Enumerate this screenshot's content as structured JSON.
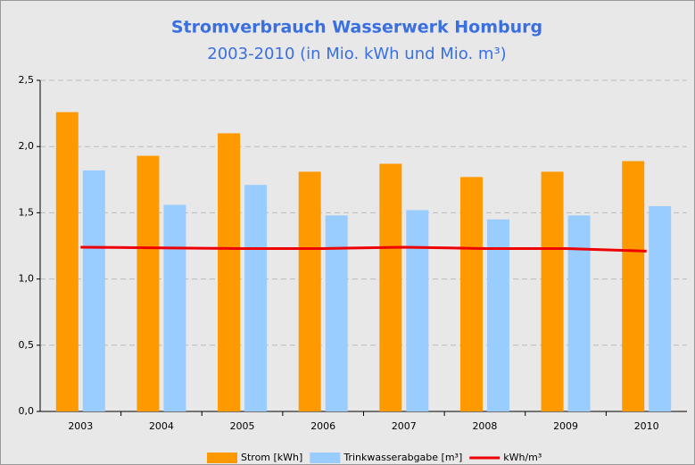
{
  "chart_data": {
    "type": "bar_line",
    "title": "Stromverbrauch Wasserwerk Homburg",
    "subtitle": "2003-2010 (in Mio. kWh und Mio. m³)",
    "categories": [
      "2003",
      "2004",
      "2005",
      "2006",
      "2007",
      "2008",
      "2009",
      "2010"
    ],
    "series": [
      {
        "name": "Strom [kWh]",
        "color": "#ff9900",
        "type": "bar",
        "values": [
          2.26,
          1.93,
          2.1,
          1.81,
          1.87,
          1.77,
          1.81,
          1.89
        ]
      },
      {
        "name": "Trinkwasserabgabe [m³]",
        "color": "#99ccff",
        "type": "bar",
        "values": [
          1.82,
          1.56,
          1.71,
          1.48,
          1.52,
          1.45,
          1.48,
          1.55
        ]
      },
      {
        "name": "kWh/m³",
        "color": "#ee0000",
        "type": "line",
        "values": [
          1.24,
          1.235,
          1.23,
          1.23,
          1.24,
          1.23,
          1.23,
          1.21
        ]
      }
    ],
    "ylim": [
      0,
      2.5
    ],
    "yticks": [
      {
        "value": 0,
        "label": "0,0"
      },
      {
        "value": 0.5,
        "label": "0,5"
      },
      {
        "value": 1,
        "label": "1,0"
      },
      {
        "value": 1.5,
        "label": "1,5"
      },
      {
        "value": 2,
        "label": "2,0"
      },
      {
        "value": 2.5,
        "label": "2,5"
      }
    ],
    "grid": true,
    "legend": "bottom"
  }
}
